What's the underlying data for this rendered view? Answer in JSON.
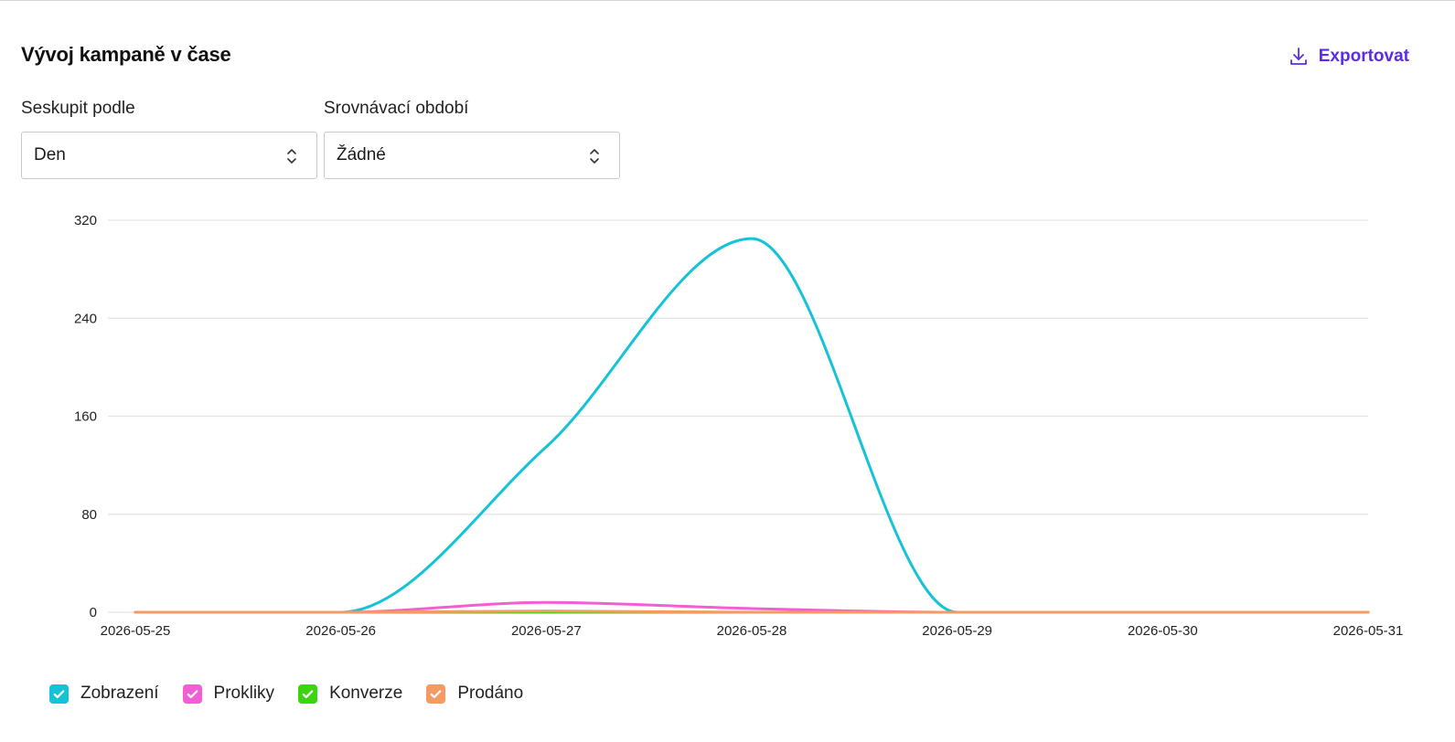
{
  "header": {
    "title": "Vývoj kampaně v čase",
    "export_label": "Exportovat",
    "export_icon": "download-icon",
    "accent": "#5b2bea"
  },
  "filters": {
    "group_by": {
      "label": "Seskupit podle",
      "value": "Den"
    },
    "compare": {
      "label": "Srovnávací období",
      "value": "Žádné"
    }
  },
  "chart_data": {
    "type": "line",
    "x": [
      "2026-05-25",
      "2026-05-26",
      "2026-05-27",
      "2026-05-28",
      "2026-05-29",
      "2026-05-30",
      "2026-05-31"
    ],
    "ylim": [
      0,
      320
    ],
    "yticks": [
      "0",
      "80",
      "160",
      "240",
      "320"
    ],
    "grid": true,
    "legend_position": "bottom-left",
    "series": [
      {
        "name": "Zobrazení",
        "color": "#14c3d6",
        "values": [
          0,
          0,
          135,
          305,
          0,
          0,
          0
        ]
      },
      {
        "name": "Prokliky",
        "color": "#f25fd4",
        "values": [
          0,
          0,
          8,
          3,
          0,
          0,
          0
        ]
      },
      {
        "name": "Konverze",
        "color": "#3dd40f",
        "values": [
          0,
          0,
          0,
          0,
          0,
          0,
          0
        ]
      },
      {
        "name": "Prodáno",
        "color": "#f59a62",
        "values": [
          0,
          0,
          1,
          0,
          0,
          0,
          0
        ]
      }
    ]
  }
}
